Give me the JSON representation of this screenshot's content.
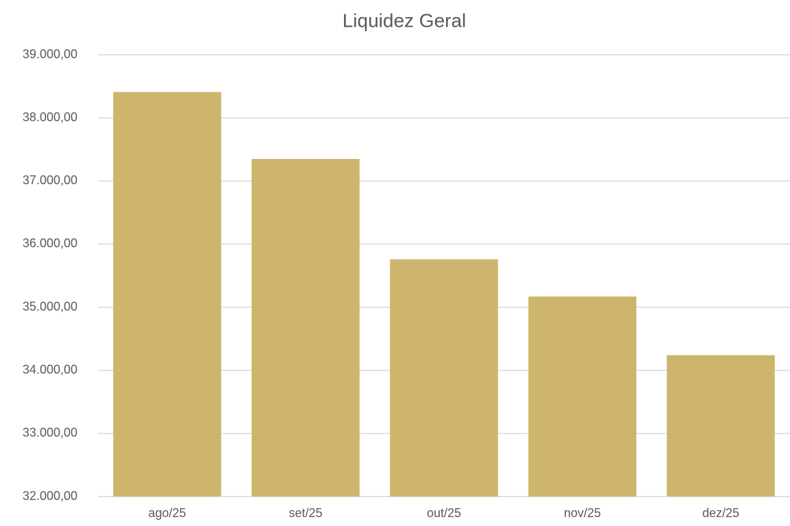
{
  "chart_data": {
    "type": "bar",
    "title": "Liquidez Geral",
    "categories": [
      "ago/25",
      "set/25",
      "out/25",
      "nov/25",
      "dez/25"
    ],
    "values": [
      38410,
      37350,
      35760,
      35170,
      34240
    ],
    "color": "#cdb56d",
    "ylim": [
      32000,
      39000
    ],
    "yticks": [
      {
        "value": 32000,
        "label": "32.000,00"
      },
      {
        "value": 33000,
        "label": "33.000,00"
      },
      {
        "value": 34000,
        "label": "34.000,00"
      },
      {
        "value": 35000,
        "label": "35.000,00"
      },
      {
        "value": 36000,
        "label": "36.000,00"
      },
      {
        "value": 37000,
        "label": "37.000,00"
      },
      {
        "value": 38000,
        "label": "38.000,00"
      },
      {
        "value": 39000,
        "label": "39.000,00"
      }
    ],
    "grid": true
  }
}
